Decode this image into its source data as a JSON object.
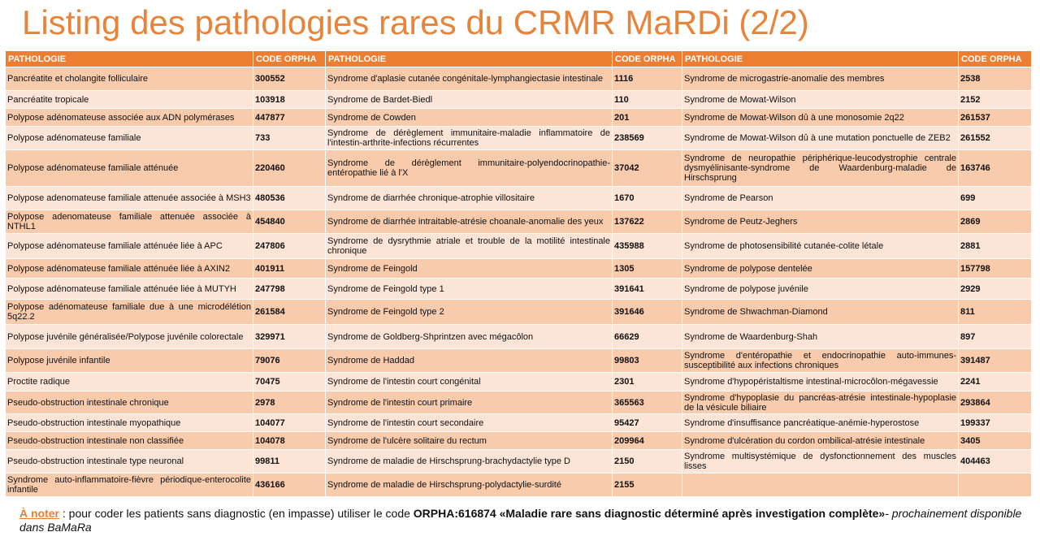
{
  "header": {
    "title": "Listing des pathologies rares du CRMR MaRDi (2/2)"
  },
  "table": {
    "columns": [
      "PATHOLOGIE",
      "CODE ORPHA",
      "PATHOLOGIE",
      "CODE ORPHA",
      "PATHOLOGIE",
      "CODE ORPHA"
    ],
    "rows": [
      [
        "Pancréatite et cholangite folliculaire",
        "300552",
        "Syndrome d'aplasie cutanée congénitale-lymphangiectasie intestinale",
        "1116",
        "Syndrome de microgastrie-anomalie des membres",
        "2538"
      ],
      [
        "Pancréatite tropicale",
        "103918",
        "Syndrome de Bardet-Biedl",
        "110",
        "Syndrome de Mowat-Wilson",
        "2152"
      ],
      [
        "Polypose adénomateuse associée aux ADN polymérases",
        "447877",
        "Syndrome de Cowden",
        "201",
        "Syndrome de Mowat-Wilson dû à une monosomie 2q22",
        "261537"
      ],
      [
        "Polypose adénomateuse familiale",
        "733",
        "Syndrome de dérèglement immunitaire-maladie inflammatoire de l'intestin-arthrite-infections récurrentes",
        "238569",
        "Syndrome de Mowat-Wilson dû à une mutation ponctuelle de ZEB2",
        "261552"
      ],
      [
        "Polypose adénomateuse familiale atténuée",
        "220460",
        "Syndrome de dérèglement immunitaire-polyendocrinopathie-entéropathie lié à l'X",
        "37042",
        "Syndrome de neuropathie périphérique-leucodystrophie centrale dysmyélinisante-syndrome de Waardenburg-maladie de Hirschsprung",
        "163746"
      ],
      [
        "Polypose adenomateuse familiale attenuée associée à MSH3",
        "480536",
        "Syndrome de diarrhée chronique-atrophie villositaire",
        "1670",
        "Syndrome de Pearson",
        "699"
      ],
      [
        "Polypose adenomateuse familiale attenuée associée à NTHL1",
        "454840",
        "Syndrome de diarrhée intraitable-atrésie choanale-anomalie des yeux",
        "137622",
        "Syndrome de Peutz-Jeghers",
        "2869"
      ],
      [
        "Polypose adénomateuse familiale atténuée liée à APC",
        "247806",
        "Syndrome de dysrythmie atriale et trouble de la motilité intestinale chronique",
        "435988",
        "Syndrome de photosensibilité cutanée-colite létale",
        "2881"
      ],
      [
        "Polypose adénomateuse familiale atténuée liée à AXIN2",
        "401911",
        "Syndrome de Feingold",
        "1305",
        "Syndrome de polypose dentelée",
        "157798"
      ],
      [
        "Polypose adénomateuse familiale atténuée liée à MUTYH",
        "247798",
        "Syndrome de Feingold type 1",
        "391641",
        "Syndrome de polypose juvénile",
        "2929"
      ],
      [
        "Polypose adénomateuse familiale due à une microdélétion 5q22.2",
        "261584",
        "Syndrome de Feingold type 2",
        "391646",
        "Syndrome de Shwachman-Diamond",
        "811"
      ],
      [
        "Polypose juvénile généralisée/Polypose juvénile colorectale",
        "329971",
        "Syndrome de Goldberg-Shprintzen avec mégacôlon",
        "66629",
        "Syndrome de Waardenburg-Shah",
        "897"
      ],
      [
        "Polypose juvénile infantile",
        "79076",
        "Syndrome de Haddad",
        "99803",
        "Syndrome d'entéropathie et endocrinopathie auto-immunes-susceptibilité aux infections chroniques",
        "391487"
      ],
      [
        "Proctite radique",
        "70475",
        "Syndrome de l'intestin court congénital",
        "2301",
        "Syndrome d'hypopéristaltisme intestinal-microcôlon-mégavessie",
        "2241"
      ],
      [
        "Pseudo-obstruction intestinale chronique",
        "2978",
        "Syndrome de l'intestin court primaire",
        "365563",
        "Syndrome d'hypoplasie du pancréas-atrésie intestinale-hypoplasie de la vésicule biliaire",
        "293864"
      ],
      [
        "Pseudo-obstruction intestinale myopathique",
        "104077",
        "Syndrome de l'intestin court secondaire",
        "95427",
        "Syndrome d'insuffisance pancréatique-anémie-hyperostose",
        "199337"
      ],
      [
        "Pseudo-obstruction intestinale non classifiée",
        "104078",
        "Syndrome de l'ulcère solitaire du rectum",
        "209964",
        "Syndrome d'ulcération du cordon ombilical-atrésie intestinale",
        "3405"
      ],
      [
        "Pseudo-obstruction intestinale type neuronal",
        "99811",
        "Syndrome de maladie de Hirschsprung-brachydactylie type D",
        "2150",
        "Syndrome multisystémique de dysfonctionnement des muscles lisses",
        "404463"
      ],
      [
        "Syndrome auto-inflammatoire-fièvre périodique-enterocolite infantile",
        "436166",
        "Syndrome de maladie de Hirschsprung-polydactylie-surdité",
        "2155",
        null,
        null
      ]
    ]
  },
  "note": {
    "label": "À noter",
    "separator": " : pour coder les patients sans diagnostic (en impasse) utiliser le code ",
    "code": "ORPHA:616874 «Maladie rare sans diagnostic déterminé après investigation complète»",
    "tail": "- prochainement disponible dans BaMaRa"
  }
}
